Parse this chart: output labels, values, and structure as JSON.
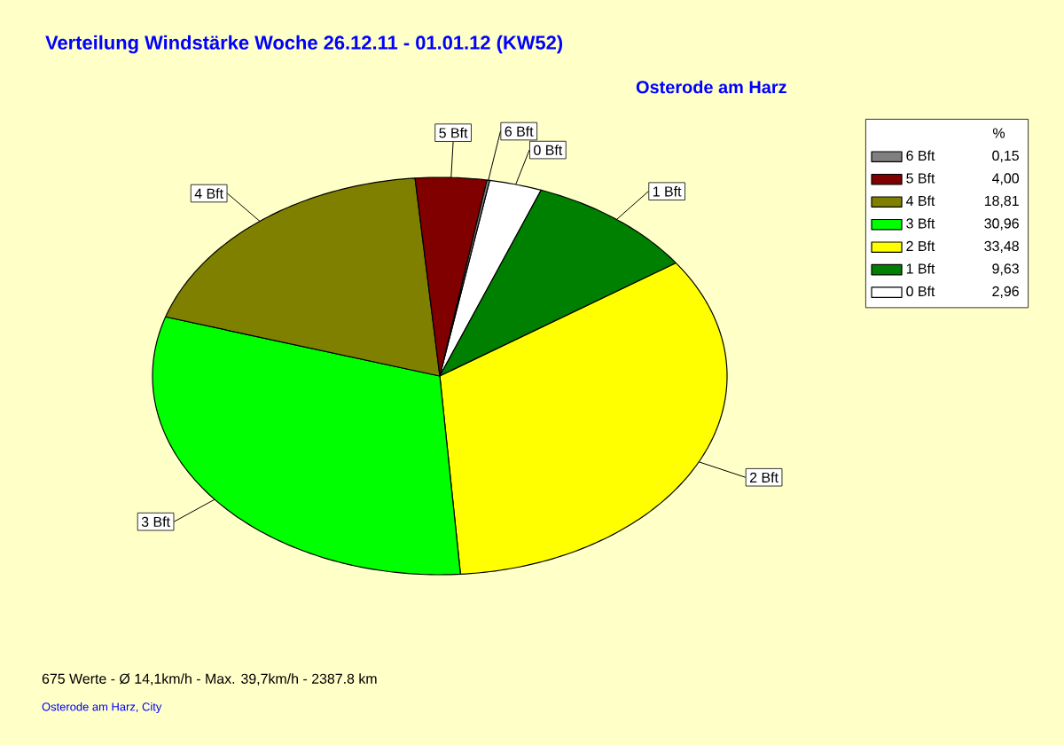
{
  "chart_data": {
    "type": "pie",
    "title": "Verteilung Windstärke  Woche 26.12.11 - 01.01.12 (KW52)",
    "subtitle": "Osterode am Harz",
    "legend_title": "%",
    "legend": "top right",
    "categories": [
      "0 Bft",
      "1 Bft",
      "2 Bft",
      "3 Bft",
      "4 Bft",
      "5 Bft",
      "6 Bft"
    ],
    "values": [
      2.96,
      9.63,
      33.48,
      30.96,
      18.81,
      4.0,
      0.15
    ],
    "value_labels": [
      "2,96",
      "9,63",
      "33,48",
      "30,96",
      "18,81",
      "4,00",
      "0,15"
    ],
    "colors": [
      "#ffffff",
      "#008000",
      "#ffff00",
      "#00ff00",
      "#808000",
      "#800000",
      "#808080"
    ],
    "annotations": [
      "675 Werte   -   Ø 14,1km/h  -  Max. 39,7km/h   -   2387.8 km",
      "Osterode am Harz, City"
    ]
  }
}
